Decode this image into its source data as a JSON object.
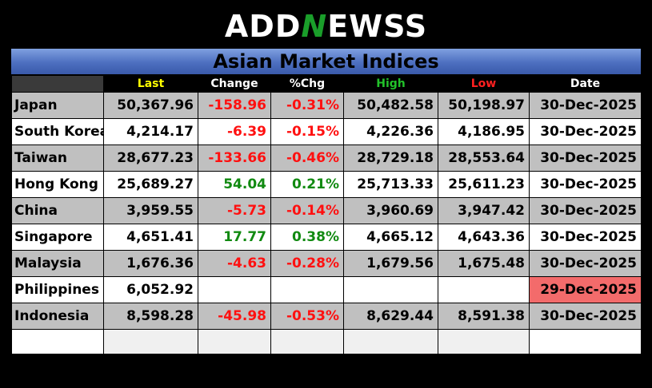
{
  "logo": {
    "part1": "ADD",
    "part2": "N",
    "part3": "EWSS"
  },
  "title": "Asian Market Indices",
  "columns": {
    "last": "Last",
    "change": "Change",
    "pct": "%Chg",
    "high": "High",
    "low": "Low",
    "date": "Date"
  },
  "colors": {
    "negative": "#ff1010",
    "positive": "#118a11",
    "stale_date": "#f36b6b",
    "title_bar": "#4d6fc0"
  },
  "rows": [
    {
      "name": "Japan",
      "last": "50,367.96",
      "change": "-158.96",
      "pct": "-0.31%",
      "high": "50,482.58",
      "low": "50,198.97",
      "date": "30-Dec-2025"
    },
    {
      "name": "South Korea",
      "last": "4,214.17",
      "change": "-6.39",
      "pct": "-0.15%",
      "high": "4,226.36",
      "low": "4,186.95",
      "date": "30-Dec-2025"
    },
    {
      "name": "Taiwan",
      "last": "28,677.23",
      "change": "-133.66",
      "pct": "-0.46%",
      "high": "28,729.18",
      "low": "28,553.64",
      "date": "30-Dec-2025"
    },
    {
      "name": "Hong Kong",
      "last": "25,689.27",
      "change": "54.04",
      "pct": "0.21%",
      "high": "25,713.33",
      "low": "25,611.23",
      "date": "30-Dec-2025"
    },
    {
      "name": "China",
      "last": "3,959.55",
      "change": "-5.73",
      "pct": "-0.14%",
      "high": "3,960.69",
      "low": "3,947.42",
      "date": "30-Dec-2025"
    },
    {
      "name": "Singapore",
      "last": "4,651.41",
      "change": "17.77",
      "pct": "0.38%",
      "high": "4,665.12",
      "low": "4,643.36",
      "date": "30-Dec-2025"
    },
    {
      "name": "Malaysia",
      "last": "1,676.36",
      "change": "-4.63",
      "pct": "-0.28%",
      "high": "1,679.56",
      "low": "1,675.48",
      "date": "30-Dec-2025"
    },
    {
      "name": "Philippines",
      "last": "6,052.92",
      "change": "",
      "pct": "",
      "high": "",
      "low": "",
      "date": "29-Dec-2025"
    },
    {
      "name": "Indonesia",
      "last": "8,598.28",
      "change": "-45.98",
      "pct": "-0.53%",
      "high": "8,629.44",
      "low": "8,591.38",
      "date": "30-Dec-2025"
    }
  ]
}
